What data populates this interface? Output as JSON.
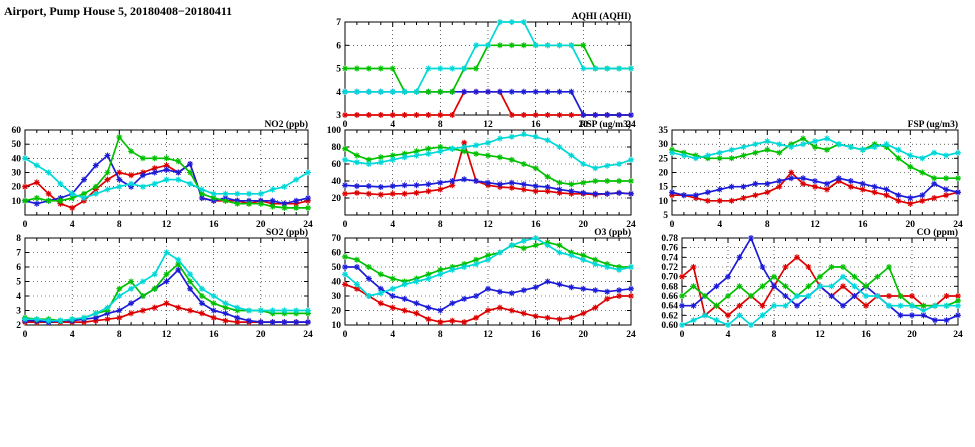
{
  "page": {
    "title": "Airport, Pump House 5, 20180408−20180411"
  },
  "colors": {
    "red": "#dd0000",
    "blue": "#1c1cd8",
    "green": "#00c000",
    "cyan": "#00d8d8"
  },
  "chart_data": [
    {
      "id": "aqhi",
      "type": "line",
      "title": "AQHI (AQHI)",
      "x_range": [
        0,
        24
      ],
      "x_ticks": [
        0,
        4,
        8,
        12,
        16,
        20,
        24
      ],
      "x_tick_labels": [
        "0",
        "4",
        "8",
        "12",
        "16",
        "20",
        "24"
      ],
      "ylim": [
        3,
        7
      ],
      "y_ticks": [
        3,
        4,
        5,
        6,
        7
      ],
      "y_tick_labels": [
        "3",
        "4",
        "5",
        "6",
        "7"
      ],
      "grid": true,
      "series": [
        {
          "name": "red",
          "color": "red",
          "values": [
            3,
            3,
            3,
            3,
            3,
            3,
            3,
            3,
            3,
            3,
            4,
            4,
            4,
            4,
            3,
            3,
            3,
            3,
            3,
            3,
            3,
            3,
            3,
            3,
            3
          ]
        },
        {
          "name": "blue",
          "color": "blue",
          "values": [
            4,
            4,
            4,
            4,
            4,
            4,
            4,
            4,
            4,
            4,
            4,
            4,
            4,
            4,
            4,
            4,
            4,
            4,
            4,
            4,
            3,
            3,
            3,
            3,
            3
          ]
        },
        {
          "name": "green",
          "color": "green",
          "values": [
            5,
            5,
            5,
            5,
            5,
            4,
            4,
            4,
            4,
            4,
            5,
            5,
            6,
            6,
            6,
            6,
            6,
            6,
            6,
            6,
            6,
            5,
            5,
            5,
            5
          ]
        },
        {
          "name": "cyan",
          "color": "cyan",
          "values": [
            4,
            4,
            4,
            4,
            4,
            4,
            4,
            5,
            5,
            5,
            5,
            6,
            6,
            7,
            7,
            7,
            6,
            6,
            6,
            6,
            5,
            5,
            5,
            5,
            5
          ]
        }
      ]
    },
    {
      "id": "no2",
      "type": "line",
      "title": "NO2 (ppb)",
      "x_range": [
        0,
        24
      ],
      "x_ticks": [
        0,
        4,
        8,
        12,
        16,
        20,
        24
      ],
      "x_tick_labels": [
        "0",
        "4",
        "8",
        "12",
        "16",
        "20",
        "24"
      ],
      "ylim": [
        0,
        60
      ],
      "y_ticks": [
        10,
        20,
        30,
        40,
        50,
        60
      ],
      "y_tick_labels": [
        "10",
        "20",
        "30",
        "40",
        "50",
        "60"
      ],
      "grid": true,
      "series": [
        {
          "name": "red",
          "color": "red",
          "values": [
            20,
            23,
            15,
            8,
            5,
            10,
            18,
            25,
            30,
            28,
            30,
            33,
            35,
            30,
            36,
            12,
            10,
            10,
            10,
            8,
            10,
            8,
            8,
            8,
            10
          ]
        },
        {
          "name": "blue",
          "color": "blue",
          "values": [
            10,
            8,
            10,
            12,
            15,
            25,
            35,
            42,
            25,
            20,
            28,
            30,
            32,
            30,
            36,
            12,
            10,
            12,
            10,
            10,
            10,
            10,
            8,
            10,
            12
          ]
        },
        {
          "name": "green",
          "color": "green",
          "values": [
            10,
            12,
            10,
            10,
            12,
            15,
            20,
            30,
            55,
            45,
            40,
            40,
            40,
            38,
            30,
            15,
            12,
            10,
            8,
            8,
            8,
            6,
            5,
            5,
            5
          ]
        },
        {
          "name": "cyan",
          "color": "cyan",
          "values": [
            40,
            35,
            30,
            22,
            15,
            12,
            15,
            18,
            20,
            22,
            20,
            22,
            25,
            25,
            22,
            18,
            15,
            15,
            15,
            15,
            15,
            18,
            20,
            25,
            30
          ]
        }
      ]
    },
    {
      "id": "rsp",
      "type": "line",
      "title": "RSP (ug/m3)",
      "x_range": [
        0,
        24
      ],
      "x_ticks": [
        0,
        4,
        8,
        12,
        16,
        20,
        24
      ],
      "x_tick_labels": [
        "0",
        "4",
        "8",
        "12",
        "16",
        "20",
        "24"
      ],
      "ylim": [
        0,
        100
      ],
      "y_ticks": [
        20,
        40,
        60,
        80,
        100
      ],
      "y_tick_labels": [
        "20",
        "40",
        "60",
        "80",
        "100"
      ],
      "grid": true,
      "series": [
        {
          "name": "red",
          "color": "red",
          "values": [
            25,
            26,
            25,
            24,
            25,
            25,
            26,
            28,
            30,
            35,
            85,
            40,
            35,
            33,
            32,
            30,
            28,
            28,
            26,
            25,
            25,
            24,
            25,
            26,
            25
          ]
        },
        {
          "name": "blue",
          "color": "blue",
          "values": [
            35,
            34,
            34,
            33,
            34,
            35,
            35,
            36,
            38,
            40,
            42,
            40,
            38,
            36,
            38,
            36,
            34,
            33,
            30,
            28,
            26,
            25,
            25,
            26,
            25
          ]
        },
        {
          "name": "green",
          "color": "green",
          "values": [
            78,
            70,
            65,
            68,
            70,
            72,
            75,
            78,
            80,
            78,
            75,
            72,
            70,
            68,
            65,
            60,
            55,
            45,
            38,
            36,
            38,
            40,
            40,
            40,
            40
          ]
        },
        {
          "name": "cyan",
          "color": "cyan",
          "values": [
            65,
            62,
            60,
            62,
            65,
            68,
            70,
            72,
            75,
            78,
            80,
            82,
            85,
            90,
            92,
            95,
            92,
            88,
            80,
            70,
            60,
            55,
            58,
            60,
            65
          ]
        }
      ]
    },
    {
      "id": "fsp",
      "type": "line",
      "title": "FSP (ug/m3)",
      "x_range": [
        0,
        24
      ],
      "x_ticks": [
        0,
        4,
        8,
        12,
        16,
        20,
        24
      ],
      "x_tick_labels": [
        "0",
        "4",
        "8",
        "12",
        "16",
        "20",
        "24"
      ],
      "ylim": [
        5,
        35
      ],
      "y_ticks": [
        5,
        10,
        15,
        20,
        25,
        30,
        35
      ],
      "y_tick_labels": [
        "5",
        "10",
        "15",
        "20",
        "25",
        "30",
        "35"
      ],
      "grid": true,
      "series": [
        {
          "name": "red",
          "color": "red",
          "values": [
            12,
            12,
            11,
            10,
            10,
            10,
            11,
            12,
            13,
            15,
            20,
            16,
            15,
            14,
            17,
            15,
            14,
            13,
            12,
            10,
            9,
            10,
            11,
            12,
            13
          ]
        },
        {
          "name": "blue",
          "color": "blue",
          "values": [
            13,
            12,
            12,
            13,
            14,
            15,
            15,
            16,
            16,
            17,
            18,
            18,
            17,
            16,
            18,
            17,
            16,
            15,
            14,
            12,
            11,
            12,
            16,
            14,
            13
          ]
        },
        {
          "name": "green",
          "color": "green",
          "values": [
            28,
            27,
            26,
            25,
            25,
            25,
            26,
            27,
            28,
            27,
            30,
            32,
            29,
            28,
            30,
            29,
            28,
            30,
            29,
            25,
            22,
            20,
            18,
            18,
            18
          ]
        },
        {
          "name": "cyan",
          "color": "cyan",
          "values": [
            27,
            26,
            25,
            26,
            27,
            28,
            29,
            30,
            31,
            30,
            29,
            30,
            31,
            32,
            30,
            29,
            28,
            29,
            30,
            28,
            26,
            25,
            27,
            26,
            27
          ]
        }
      ]
    },
    {
      "id": "so2",
      "type": "line",
      "title": "SO2 (ppb)",
      "x_range": [
        0,
        24
      ],
      "x_ticks": [
        0,
        4,
        8,
        12,
        16,
        20,
        24
      ],
      "x_tick_labels": [
        "0",
        "4",
        "8",
        "12",
        "16",
        "20",
        "24"
      ],
      "ylim": [
        2,
        8
      ],
      "y_ticks": [
        2,
        3,
        4,
        5,
        6,
        7,
        8
      ],
      "y_tick_labels": [
        "2",
        "3",
        "4",
        "5",
        "6",
        "7",
        "8"
      ],
      "grid": true,
      "series": [
        {
          "name": "red",
          "color": "red",
          "values": [
            2.2,
            2.2,
            2.2,
            2.2,
            2.2,
            2.2,
            2.3,
            2.4,
            2.5,
            2.8,
            3.0,
            3.2,
            3.5,
            3.2,
            3.0,
            2.8,
            2.5,
            2.3,
            2.2,
            2.2,
            2.2,
            2.2,
            2.2,
            2.2,
            2.2
          ]
        },
        {
          "name": "blue",
          "color": "blue",
          "values": [
            2.3,
            2.3,
            2.2,
            2.3,
            2.3,
            2.4,
            2.5,
            2.8,
            3.0,
            3.5,
            4.0,
            4.5,
            5.0,
            5.8,
            4.5,
            3.5,
            3.0,
            2.8,
            2.5,
            2.3,
            2.2,
            2.2,
            2.2,
            2.2,
            2.2
          ]
        },
        {
          "name": "green",
          "color": "green",
          "values": [
            2.5,
            2.4,
            2.4,
            2.3,
            2.4,
            2.5,
            2.8,
            3.0,
            4.5,
            5.0,
            4.0,
            4.5,
            5.5,
            6.2,
            5.0,
            4.0,
            3.5,
            3.2,
            3.0,
            3.0,
            3.0,
            2.8,
            2.8,
            2.8,
            2.8
          ]
        },
        {
          "name": "cyan",
          "color": "cyan",
          "values": [
            2.4,
            2.4,
            2.3,
            2.3,
            2.4,
            2.5,
            2.8,
            3.2,
            4.0,
            4.5,
            5.0,
            5.5,
            7.0,
            6.5,
            5.5,
            4.5,
            4.0,
            3.5,
            3.2,
            3.0,
            3.0,
            3.0,
            3.0,
            3.0,
            3.0
          ]
        }
      ]
    },
    {
      "id": "o3",
      "type": "line",
      "title": "O3 (ppb)",
      "x_range": [
        0,
        24
      ],
      "x_ticks": [
        0,
        4,
        8,
        12,
        16,
        20,
        24
      ],
      "x_tick_labels": [
        "0",
        "4",
        "8",
        "12",
        "16",
        "20",
        "24"
      ],
      "ylim": [
        10,
        70
      ],
      "y_ticks": [
        10,
        20,
        30,
        40,
        50,
        60,
        70
      ],
      "y_tick_labels": [
        "10",
        "20",
        "30",
        "40",
        "50",
        "60",
        "70"
      ],
      "grid": true,
      "series": [
        {
          "name": "red",
          "color": "red",
          "values": [
            38,
            35,
            30,
            25,
            22,
            20,
            18,
            14,
            12,
            13,
            12,
            15,
            20,
            22,
            20,
            18,
            16,
            15,
            14,
            15,
            18,
            22,
            28,
            30,
            30
          ]
        },
        {
          "name": "blue",
          "color": "blue",
          "values": [
            50,
            50,
            42,
            35,
            30,
            28,
            25,
            22,
            20,
            25,
            28,
            30,
            35,
            33,
            32,
            34,
            36,
            40,
            38,
            36,
            35,
            34,
            33,
            34,
            35
          ]
        },
        {
          "name": "green",
          "color": "green",
          "values": [
            57,
            55,
            50,
            45,
            42,
            40,
            42,
            45,
            48,
            50,
            52,
            55,
            58,
            60,
            65,
            63,
            65,
            67,
            65,
            60,
            58,
            55,
            52,
            50,
            50
          ]
        },
        {
          "name": "cyan",
          "color": "cyan",
          "values": [
            45,
            38,
            30,
            32,
            35,
            38,
            40,
            42,
            45,
            48,
            50,
            52,
            55,
            60,
            65,
            68,
            70,
            65,
            60,
            58,
            55,
            52,
            50,
            48,
            50
          ]
        }
      ]
    },
    {
      "id": "co",
      "type": "line",
      "title": "CO (ppm)",
      "x_range": [
        0,
        24
      ],
      "x_ticks": [
        0,
        4,
        8,
        12,
        16,
        20,
        24
      ],
      "x_tick_labels": [
        "0",
        "4",
        "8",
        "12",
        "16",
        "20",
        "24"
      ],
      "ylim": [
        0.6,
        0.78
      ],
      "y_ticks": [
        0.6,
        0.62,
        0.64,
        0.66,
        0.68,
        0.7,
        0.72,
        0.74,
        0.76,
        0.78
      ],
      "y_tick_labels": [
        "0.60",
        "0.62",
        "0.64",
        "0.66",
        "0.68",
        "0.70",
        "0.72",
        "0.74",
        "0.76",
        "0.78"
      ],
      "grid": true,
      "series": [
        {
          "name": "red",
          "color": "red",
          "values": [
            0.7,
            0.72,
            0.62,
            0.64,
            0.62,
            0.64,
            0.66,
            0.64,
            0.68,
            0.72,
            0.74,
            0.72,
            0.68,
            0.66,
            0.68,
            0.66,
            0.64,
            0.66,
            0.66,
            0.66,
            0.66,
            0.64,
            0.64,
            0.66,
            0.66
          ]
        },
        {
          "name": "blue",
          "color": "blue",
          "values": [
            0.64,
            0.64,
            0.66,
            0.68,
            0.7,
            0.74,
            0.78,
            0.72,
            0.68,
            0.66,
            0.64,
            0.66,
            0.68,
            0.66,
            0.64,
            0.66,
            0.68,
            0.66,
            0.64,
            0.62,
            0.62,
            0.62,
            0.61,
            0.61,
            0.62
          ]
        },
        {
          "name": "green",
          "color": "green",
          "values": [
            0.66,
            0.68,
            0.66,
            0.64,
            0.66,
            0.68,
            0.66,
            0.68,
            0.7,
            0.68,
            0.66,
            0.68,
            0.7,
            0.72,
            0.72,
            0.7,
            0.68,
            0.7,
            0.72,
            0.66,
            0.64,
            0.64,
            0.64,
            0.64,
            0.65
          ]
        },
        {
          "name": "cyan",
          "color": "cyan",
          "values": [
            0.6,
            0.61,
            0.62,
            0.61,
            0.6,
            0.62,
            0.6,
            0.62,
            0.64,
            0.64,
            0.66,
            0.66,
            0.68,
            0.68,
            0.7,
            0.68,
            0.66,
            0.66,
            0.64,
            0.64,
            0.64,
            0.63,
            0.64,
            0.64,
            0.64
          ]
        }
      ]
    }
  ]
}
